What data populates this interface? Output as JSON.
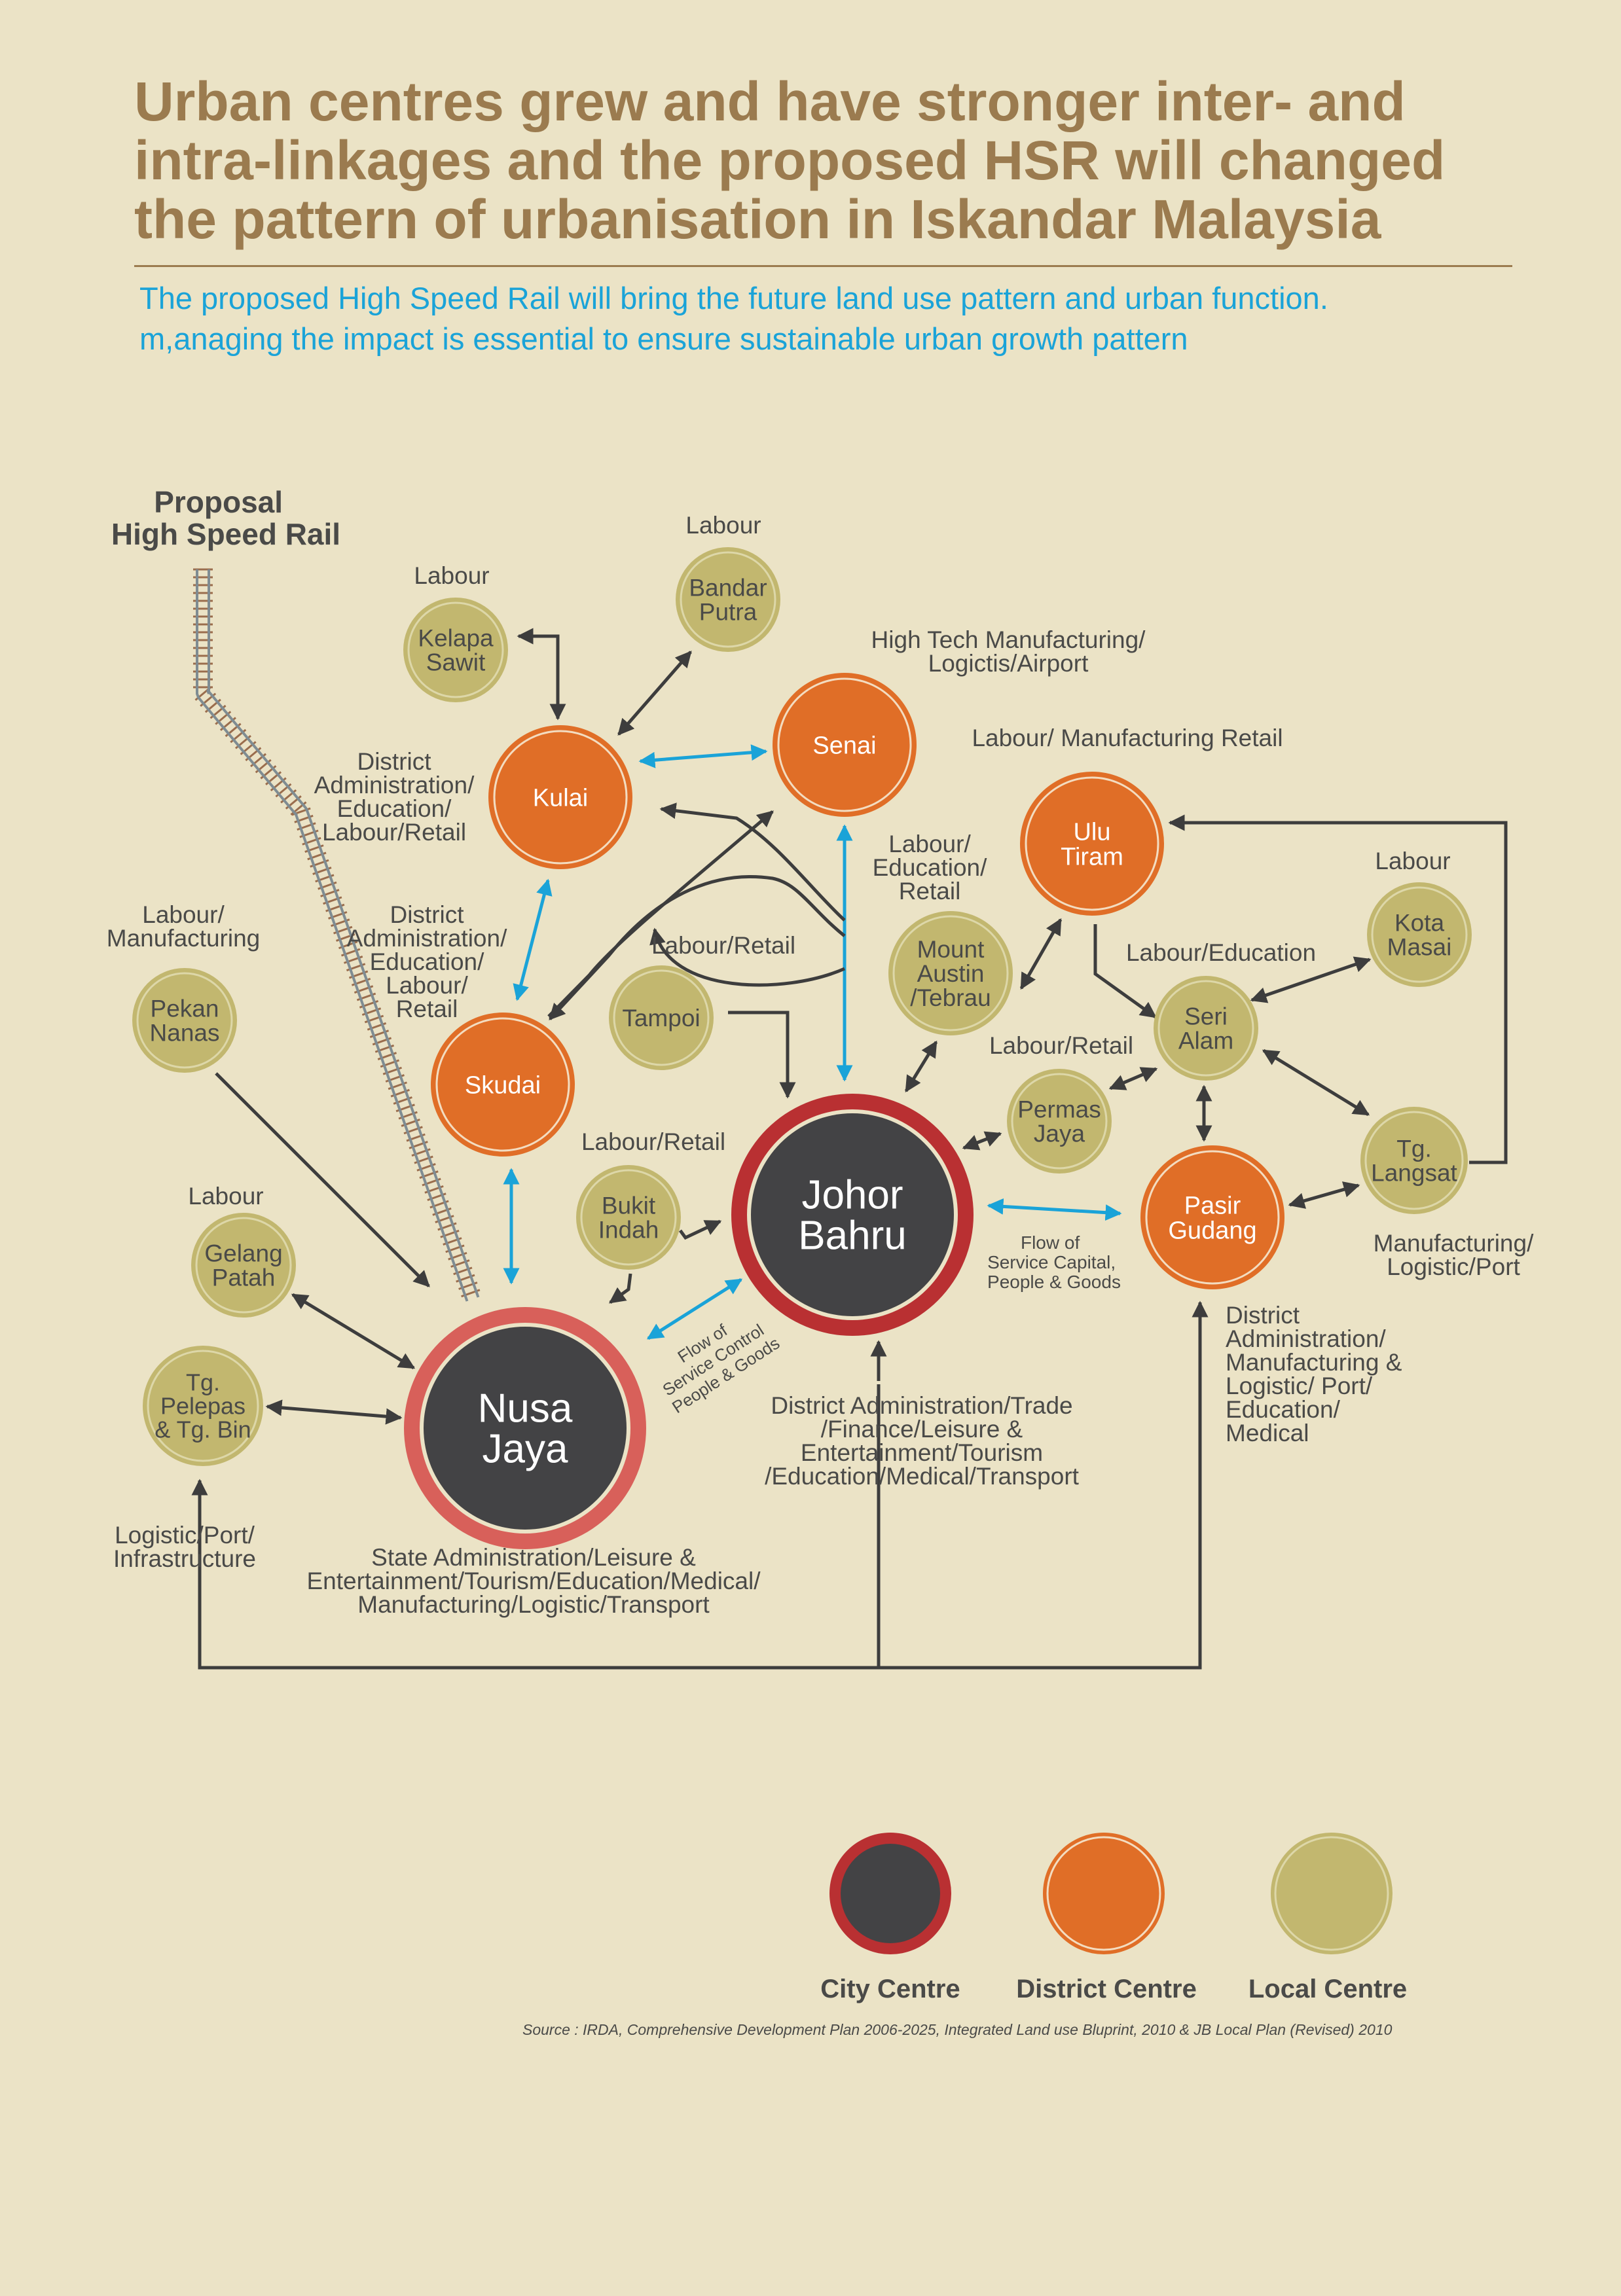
{
  "title_lines": [
    "Urban centres grew and have stronger inter- and",
    "intra-linkages and the proposed HSR will changed",
    "the pattern of urbanisation in Iskandar Malaysia"
  ],
  "subtitle_lines": [
    "The proposed High Speed Rail will bring the future land use pattern and urban function.",
    "m,anaging the impact is essential to ensure sustainable urban growth pattern"
  ],
  "rail_label": [
    "Proposal",
    "High Speed Rail"
  ],
  "colors": {
    "city_fill": "#434345",
    "city_ring_jb": "#b93032",
    "city_ring_nj": "#d8605a",
    "district_fill": "#e06e27",
    "local_fill": "#c2b76f",
    "local_ring": "#ddd7a8",
    "arrow_dark": "#3d3d3d",
    "arrow_blue": "#1aa3d8",
    "text": "#4a4a48"
  },
  "nodes": {
    "johor_bahru": {
      "type": "city",
      "name": [
        "Johor",
        "Bahru"
      ]
    },
    "nusa_jaya": {
      "type": "city",
      "name": [
        "Nusa",
        "Jaya"
      ]
    },
    "kulai": {
      "type": "district",
      "name": [
        "Kulai"
      ]
    },
    "senai": {
      "type": "district",
      "name": [
        "Senai"
      ]
    },
    "skudai": {
      "type": "district",
      "name": [
        "Skudai"
      ]
    },
    "ulu_tiram": {
      "type": "district",
      "name": [
        "Ulu",
        "Tiram"
      ]
    },
    "pasir_gudang": {
      "type": "district",
      "name": [
        "Pasir",
        "Gudang"
      ]
    },
    "kelapa_sawit": {
      "type": "local",
      "name": [
        "Kelapa",
        "Sawit"
      ]
    },
    "bandar_putra": {
      "type": "local",
      "name": [
        "Bandar",
        "Putra"
      ]
    },
    "pekan_nanas": {
      "type": "local",
      "name": [
        "Pekan",
        "Nanas"
      ]
    },
    "tampoi": {
      "type": "local",
      "name": [
        "Tampoi"
      ]
    },
    "mount_austin": {
      "type": "local",
      "name": [
        "Mount",
        "Austin",
        "/Tebrau"
      ]
    },
    "kota_masai": {
      "type": "local",
      "name": [
        "Kota",
        "Masai"
      ]
    },
    "seri_alam": {
      "type": "local",
      "name": [
        "Seri",
        "Alam"
      ]
    },
    "permas_jaya": {
      "type": "local",
      "name": [
        "Permas",
        "Jaya"
      ]
    },
    "tg_langsat": {
      "type": "local",
      "name": [
        "Tg.",
        "Langsat"
      ]
    },
    "bukit_indah": {
      "type": "local",
      "name": [
        "Bukit",
        "Indah"
      ]
    },
    "gelang_patah": {
      "type": "local",
      "name": [
        "Gelang",
        "Patah"
      ]
    },
    "tg_pelepas": {
      "type": "local",
      "name": [
        "Tg.",
        "Pelepas",
        "& Tg. Bin"
      ]
    }
  },
  "functions": {
    "bandar_putra": [
      "Labour"
    ],
    "kelapa_sawit": [
      "Labour"
    ],
    "senai": [
      "High Tech Manufacturing/",
      "Logictis/Airport"
    ],
    "kulai": [
      "District",
      "Administration/",
      "Education/",
      "Labour/Retail"
    ],
    "ulu_tiram": [
      "Labour/ Manufacturing Retail"
    ],
    "mount_austin": [
      "Labour/",
      "Education/",
      "Retail"
    ],
    "kota_masai": [
      "Labour"
    ],
    "pekan_nanas": [
      "Labour/",
      "Manufacturing"
    ],
    "skudai": [
      "District",
      "Administration/",
      "Education/",
      "Labour/",
      "Retail"
    ],
    "tampoi": [
      "Labour/Retail"
    ],
    "seri_alam": [
      "Labour/Education"
    ],
    "permas_jaya": [
      "Labour/Retail"
    ],
    "bukit_indah": [
      "Labour/Retail"
    ],
    "gelang_patah": [
      "Labour"
    ],
    "tg_langsat": [
      "Manufacturing/",
      "Logistic/Port"
    ],
    "pasir_gudang": [
      "District",
      "Administration/",
      "Manufacturing &",
      "Logistic/ Port/",
      "Education/",
      "Medical"
    ],
    "johor_bahru": [
      "District Administration/Trade",
      "/Finance/Leisure &",
      "Entertainment/Tourism",
      "/Education/Medical/Transport"
    ],
    "tg_pelepas": [
      "Logistic/Port/",
      "Infrastructure"
    ],
    "nusa_jaya": [
      "State Administration/Leisure &",
      "Entertainment/Tourism/Education/Medical/",
      "Manufacturing/Logistic/Transport"
    ]
  },
  "flow_labels": {
    "nj_jb": [
      "Flow of",
      "Service Control",
      "People & Goods"
    ],
    "jb_pg": [
      "Flow of",
      "Service Capital,",
      "People & Goods"
    ]
  },
  "legend": [
    {
      "type": "city",
      "label": "City Centre"
    },
    {
      "type": "district",
      "label": "District Centre"
    },
    {
      "type": "local",
      "label": "Local Centre"
    }
  ],
  "source": "Source : IRDA, Comprehensive Development Plan 2006-2025, Integrated Land use Bluprint, 2010 & JB Local Plan (Revised) 2010"
}
